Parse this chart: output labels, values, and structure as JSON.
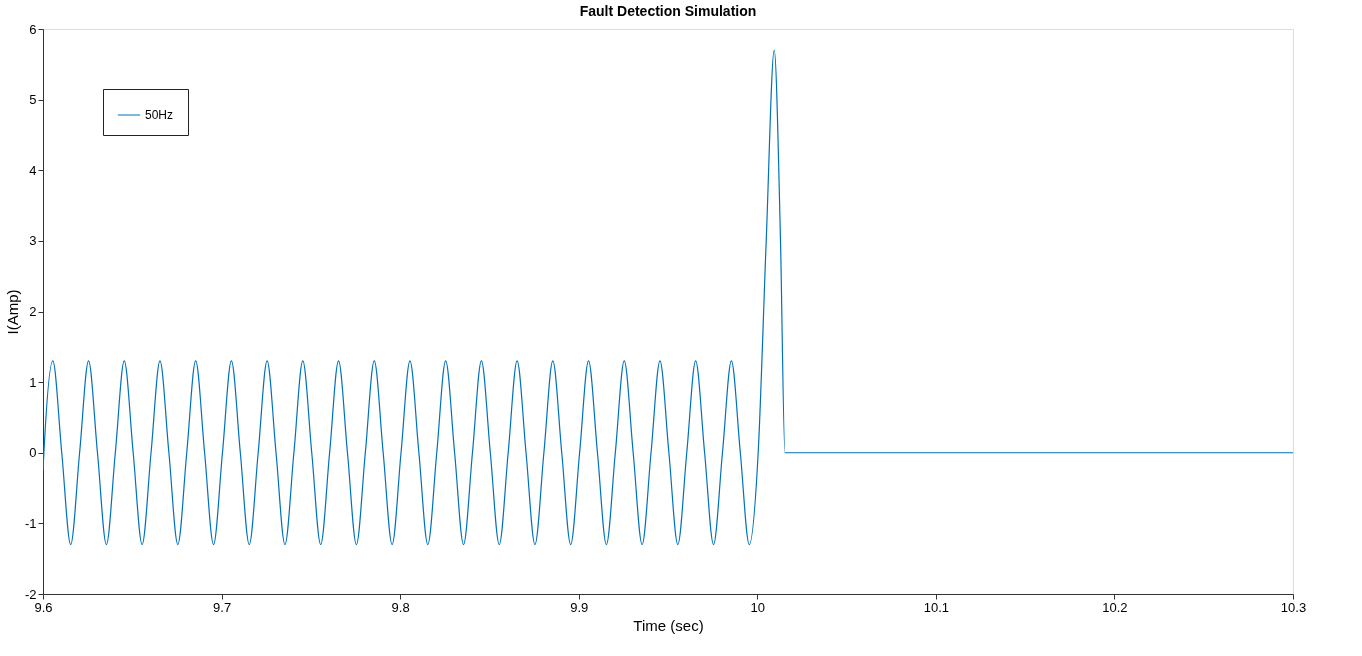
{
  "chart_data": {
    "type": "line",
    "title": "Fault Detection Simulation",
    "xlabel": "Time (sec)",
    "ylabel": "I(Amp)",
    "xlim": [
      9.6,
      10.3
    ],
    "xticks": [
      9.6,
      9.7,
      9.8,
      9.9,
      10,
      10.1,
      10.2,
      10.3
    ],
    "ylim": [
      -2,
      6
    ],
    "yticks": [
      -2,
      -1,
      0,
      1,
      2,
      3,
      4,
      5,
      6
    ],
    "grid": false,
    "legend": "top left",
    "marker": "none",
    "line_style": "solid",
    "series": [
      {
        "name": "50Hz",
        "color": "#0072bd",
        "x": [
          9.6,
          9.6005,
          9.6055,
          9.6105,
          9.6155,
          9.6205,
          9.6255,
          9.6305,
          9.6355,
          9.6405,
          9.6455,
          9.6505,
          9.6555,
          9.6605,
          9.6655,
          9.6705,
          9.6755,
          9.6805,
          9.6855,
          9.6905,
          9.6955,
          9.7005,
          9.7055,
          9.7105,
          9.7155,
          9.7205,
          9.7255,
          9.7305,
          9.7355,
          9.7405,
          9.7455,
          9.7505,
          9.7555,
          9.7605,
          9.7655,
          9.7705,
          9.7755,
          9.7805,
          9.7855,
          9.7905,
          9.7955,
          9.8005,
          9.8055,
          9.8105,
          9.8155,
          9.8205,
          9.8255,
          9.8305,
          9.8355,
          9.8405,
          9.8455,
          9.8505,
          9.8555,
          9.8605,
          9.8655,
          9.8705,
          9.8755,
          9.8805,
          9.8855,
          9.8905,
          9.8955,
          9.9005,
          9.9055,
          9.9105,
          9.9155,
          9.9205,
          9.9255,
          9.9305,
          9.9355,
          9.9405,
          9.9455,
          9.9505,
          9.9555,
          9.9605,
          9.9655,
          9.9705,
          9.9755,
          9.9805,
          9.9855,
          9.9905,
          9.9955,
          10.0005,
          10.005,
          10.0095,
          10.013,
          10.0155,
          10.3
        ],
        "values": [
          -0.25,
          0,
          1.3,
          0,
          -1.3,
          0,
          1.3,
          0,
          -1.3,
          0,
          1.3,
          0,
          -1.3,
          0,
          1.3,
          0,
          -1.3,
          0,
          1.3,
          0,
          -1.3,
          0,
          1.3,
          0,
          -1.3,
          0,
          1.3,
          0,
          -1.3,
          0,
          1.3,
          0,
          -1.3,
          0,
          1.3,
          0,
          -1.3,
          0,
          1.3,
          0,
          -1.3,
          0,
          1.3,
          0,
          -1.3,
          0,
          1.3,
          0,
          -1.3,
          0,
          1.3,
          0,
          -1.3,
          0,
          1.3,
          0,
          -1.3,
          0,
          1.3,
          0,
          -1.3,
          0,
          1.3,
          0,
          -1.3,
          0,
          1.3,
          0,
          -1.3,
          0,
          1.3,
          0,
          -1.3,
          0,
          1.3,
          0,
          -1.3,
          0,
          1.3,
          0,
          -1.3,
          0,
          3.0,
          5.7,
          3.0,
          0,
          0
        ]
      }
    ]
  }
}
